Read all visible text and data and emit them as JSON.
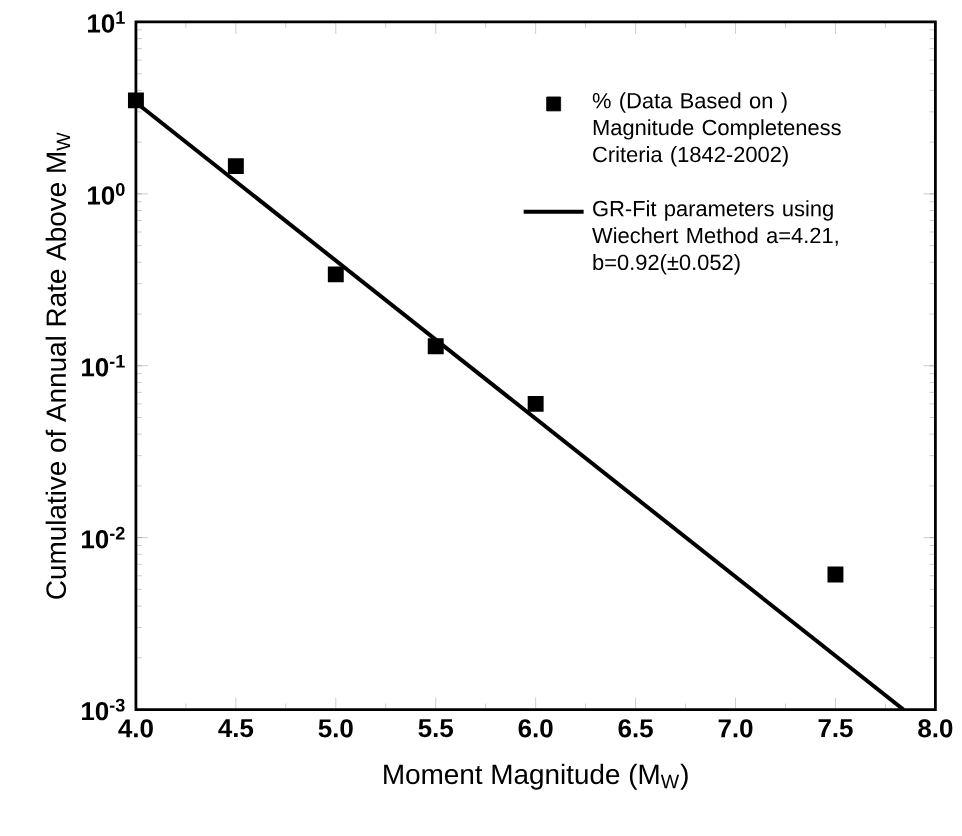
{
  "chart_data": {
    "type": "scatter",
    "xlabel": "Moment Magnitude (M$_{W}$)",
    "ylabel": "Cumulative of Annual Rate Above M$_{W}$",
    "log": true,
    "xlim": [
      4.0,
      8.0
    ],
    "ylim": [
      0.001,
      10
    ],
    "xticks": [
      {
        "value": 4,
        "label": "4.0"
      },
      {
        "value": 4.5,
        "label": "4.5"
      },
      {
        "value": 5,
        "label": "5.0"
      },
      {
        "value": 5.5,
        "label": "5.5"
      },
      {
        "value": 6,
        "label": "6.0"
      },
      {
        "value": 6.5,
        "label": "6.5"
      },
      {
        "value": 7,
        "label": "7.0"
      },
      {
        "value": 7.5,
        "label": "7.5"
      },
      {
        "value": 8,
        "label": "8.0"
      }
    ],
    "yticks": [
      {
        "value": 0.001,
        "label": "10$^{-3}$"
      },
      {
        "value": 0.01,
        "label": "10$^{-2}$"
      },
      {
        "value": 0.1,
        "label": "10$^{-1}$"
      },
      {
        "value": 1,
        "label": "10$^{0}$"
      },
      {
        "value": 10,
        "label": "10$^{1}$"
      }
    ],
    "legend": "top right",
    "grid": false,
    "series": [
      {
        "name": "% (Data Based on ) Magnitude Completeness Criteria (1842-2002)",
        "marker": "square",
        "color": "#000000",
        "x": [
          4.0,
          4.5,
          5.0,
          5.5,
          6.0,
          7.5
        ],
        "values": [
          3.5,
          1.45,
          0.34,
          0.13,
          0.06,
          0.0061
        ]
      },
      {
        "name": "GR-Fit parameters using Wiechert Method a=4.21, b=0.92(±0.052)",
        "type": "line",
        "marker": "none",
        "line_style": "solid",
        "color": "#000000",
        "x": [
          4.0,
          7.84
        ],
        "values": [
          3.4,
          0.001
        ]
      }
    ]
  }
}
